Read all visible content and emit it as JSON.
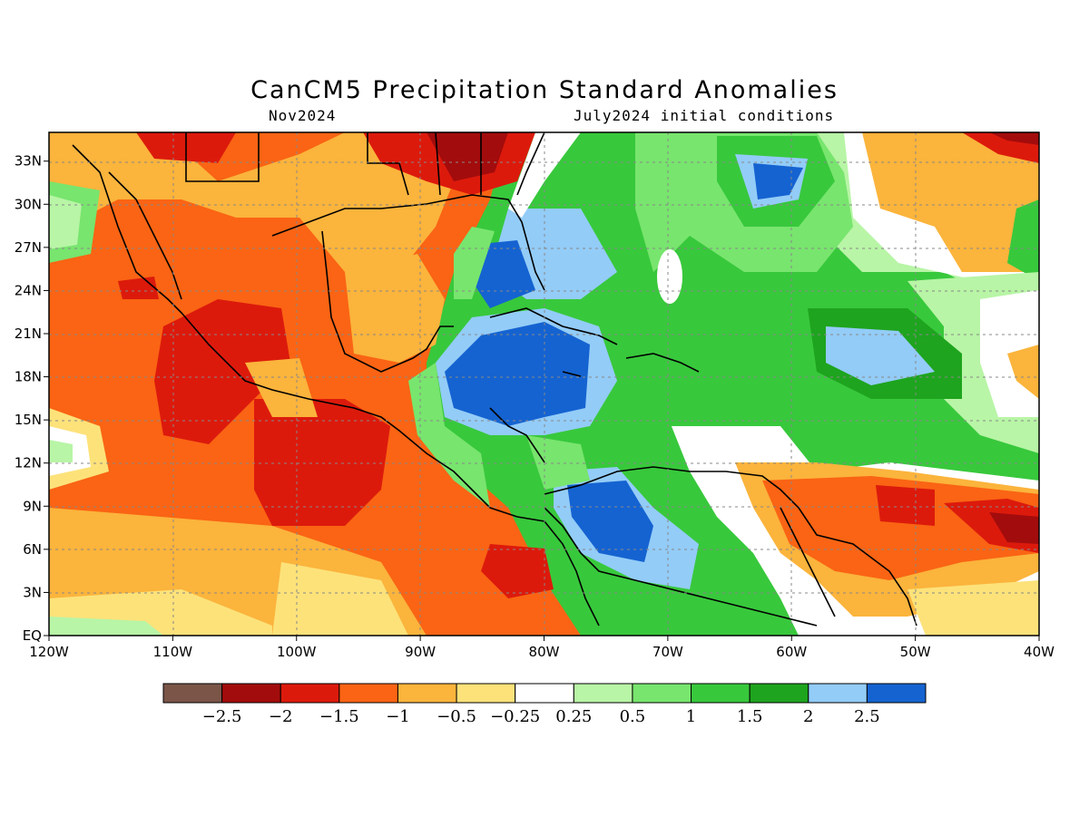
{
  "header": {
    "title": "CanCM5 Precipitation Standard Anomalies",
    "subtitle_left": "Nov2024",
    "subtitle_right": "July2024 initial conditions"
  },
  "map": {
    "lon_range": [
      -120,
      -40
    ],
    "lat_range": [
      0,
      35
    ],
    "x_ticks": [
      "120W",
      "110W",
      "100W",
      "90W",
      "80W",
      "70W",
      "60W",
      "50W",
      "40W"
    ],
    "y_ticks": [
      "EQ",
      "3N",
      "6N",
      "9N",
      "12N",
      "15N",
      "18N",
      "21N",
      "24N",
      "27N",
      "30N",
      "33N"
    ],
    "grid": true
  },
  "colorbar": {
    "colors": [
      "#7a5548",
      "#a30c0c",
      "#dc1a0c",
      "#fa6414",
      "#fbb43c",
      "#fde27a",
      "#ffffff",
      "#b8f5a6",
      "#78e56e",
      "#38c83c",
      "#1ea41e",
      "#93ccf7",
      "#1563d1"
    ],
    "labels": [
      "−2.5",
      "−2",
      "−1.5",
      "−1",
      "−0.5",
      "−0.25",
      "0.25",
      "0.5",
      "1",
      "1.5",
      "2",
      "2.5"
    ]
  }
}
